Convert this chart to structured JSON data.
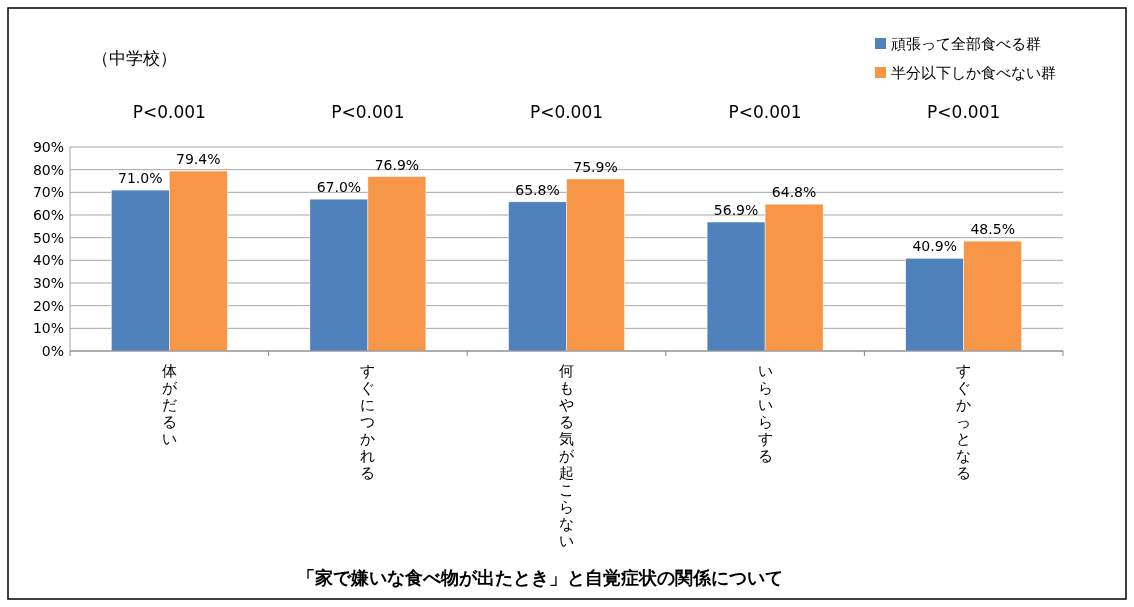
{
  "chart_data": {
    "type": "bar",
    "title": "「家で嫌いな食べ物が出たとき」と自覚症状の関係について",
    "subtitle": "（中学校）",
    "categories": [
      "体がだるい",
      "すぐにつかれる",
      "何もやる気が起こらない",
      "いらいらする",
      "すぐかっとなる"
    ],
    "series": [
      {
        "name": "頑張って全部食べる群",
        "color": "#4f81bd",
        "values": [
          71.0,
          67.0,
          65.8,
          56.9,
          40.9
        ],
        "value_labels": [
          "71.0%",
          "67.0%",
          "65.8%",
          "56.9%",
          "40.9%"
        ]
      },
      {
        "name": "半分以下しか食べない群",
        "color": "#f79646",
        "values": [
          79.4,
          76.9,
          75.9,
          64.8,
          48.5
        ],
        "value_labels": [
          "79.4%",
          "76.9%",
          "75.9%",
          "64.8%",
          "48.5%"
        ]
      }
    ],
    "ylim": [
      0,
      90
    ],
    "yticks": [
      {
        "value": 0,
        "label": "0%"
      },
      {
        "value": 10,
        "label": "10%"
      },
      {
        "value": 20,
        "label": "20%"
      },
      {
        "value": 30,
        "label": "30%"
      },
      {
        "value": 40,
        "label": "40%"
      },
      {
        "value": 50,
        "label": "50%"
      },
      {
        "value": 60,
        "label": "60%"
      },
      {
        "value": 70,
        "label": "70%"
      },
      {
        "value": 80,
        "label": "80%"
      },
      {
        "value": 90,
        "label": "90%"
      }
    ],
    "grid": "y",
    "legend": "top right",
    "annotations": [
      "P<0.001",
      "P<0.001",
      "P<0.001",
      "P<0.001",
      "P<0.001"
    ]
  }
}
